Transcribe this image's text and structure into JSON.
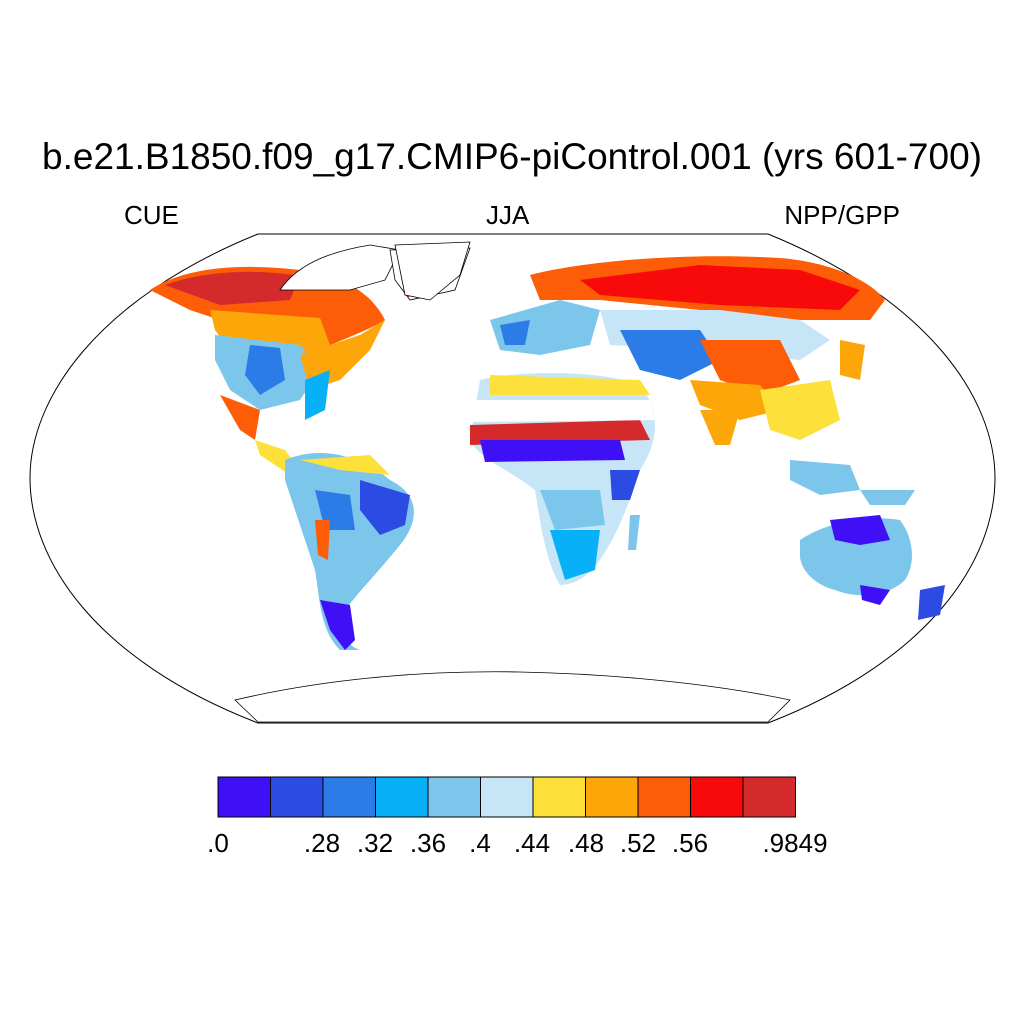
{
  "title": "b.e21.B1850.f09_g17.CMIP6-piControl.001 (yrs 601-700)",
  "left_label": "CUE",
  "center_label": "JJA",
  "right_label": "NPP/GPP",
  "colorbar": {
    "colors": [
      "#3f0ff5",
      "#2b4be3",
      "#2c7ce8",
      "#08b0f8",
      "#7cc6ec",
      "#c6e6f7",
      "#fde03a",
      "#fda60a",
      "#fd5d06",
      "#f90a0a",
      "#d42a2b"
    ],
    "labels": [
      ".0",
      ".28",
      ".32",
      ".36",
      ".4",
      ".44",
      ".48",
      ".52",
      ".56",
      ".9849"
    ]
  }
}
